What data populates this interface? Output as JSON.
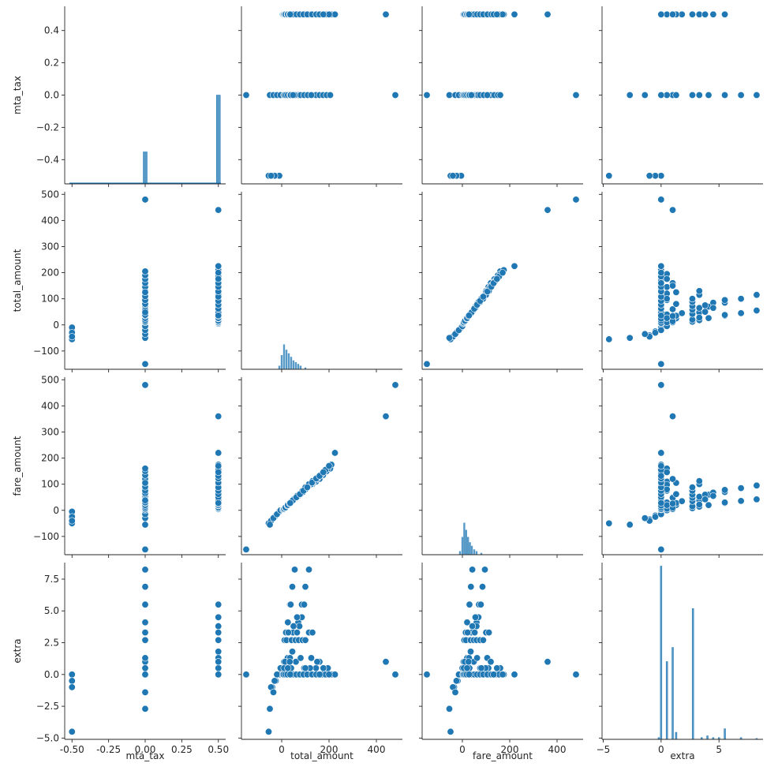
{
  "chart_data": {
    "type": "scatter",
    "variables": [
      "mta_tax",
      "total_amount",
      "fare_amount",
      "extra"
    ],
    "ranges": {
      "mta_tax": [
        -0.55,
        0.55
      ],
      "total_amount": [
        -170,
        510
      ],
      "fare_amount": [
        -170,
        510
      ],
      "extra": [
        -5.1,
        8.8
      ]
    },
    "ticks": {
      "mta_tax": [
        {
          "v": -0.5,
          "label": "-0.50"
        },
        {
          "v": -0.25,
          "label": "-0.25"
        },
        {
          "v": 0,
          "label": "0.00"
        },
        {
          "v": 0.25,
          "label": "0.25"
        },
        {
          "v": 0.5,
          "label": "0.50"
        }
      ],
      "mta_tax_y": [
        {
          "v": 0.4,
          "label": "0.4"
        },
        {
          "v": 0.2,
          "label": "0.2"
        },
        {
          "v": 0,
          "label": "0.0"
        },
        {
          "v": -0.2,
          "label": "−0.2"
        },
        {
          "v": -0.4,
          "label": "−0.4"
        }
      ],
      "total_amount_x": [
        {
          "v": 0,
          "label": "0"
        },
        {
          "v": 200,
          "label": "200"
        },
        {
          "v": 400,
          "label": "400"
        }
      ],
      "total_amount_y": [
        {
          "v": 500,
          "label": "500"
        },
        {
          "v": 400,
          "label": "400"
        },
        {
          "v": 300,
          "label": "300"
        },
        {
          "v": 200,
          "label": "200"
        },
        {
          "v": 100,
          "label": "100"
        },
        {
          "v": 0,
          "label": "0"
        },
        {
          "v": -100,
          "label": "−100"
        }
      ],
      "fare_amount_x": [
        {
          "v": 0,
          "label": "0"
        },
        {
          "v": 200,
          "label": "200"
        },
        {
          "v": 400,
          "label": "400"
        }
      ],
      "fare_amount_y": [
        {
          "v": 500,
          "label": "500"
        },
        {
          "v": 400,
          "label": "400"
        },
        {
          "v": 300,
          "label": "300"
        },
        {
          "v": 200,
          "label": "200"
        },
        {
          "v": 100,
          "label": "100"
        },
        {
          "v": 0,
          "label": "0"
        },
        {
          "v": -100,
          "label": "−100"
        }
      ],
      "extra_x": [
        {
          "v": -5,
          "label": "−5"
        },
        {
          "v": 0,
          "label": "0"
        },
        {
          "v": 5,
          "label": "5"
        }
      ],
      "extra_y": [
        {
          "v": 7.5,
          "label": "7.5"
        },
        {
          "v": 5,
          "label": "5.0"
        },
        {
          "v": 2.5,
          "label": "2.5"
        },
        {
          "v": 0,
          "label": "0.0"
        },
        {
          "v": -2.5,
          "label": "−2.5"
        },
        {
          "v": -5,
          "label": "−5.0"
        }
      ]
    },
    "axis_titles": [
      "mta_tax",
      "total_amount",
      "fare_amount",
      "extra"
    ],
    "color": "#1f77b4",
    "grid": false,
    "records": [
      [
        -0.5,
        -55,
        -50,
        -4.5
      ],
      [
        -0.5,
        -40,
        -35,
        -1.0
      ],
      [
        -0.5,
        -25,
        -20,
        -0.5
      ],
      [
        -0.5,
        -10,
        -5,
        0.0
      ],
      [
        -0.5,
        -30,
        -25,
        -0.5
      ],
      [
        -0.5,
        -45,
        -40,
        -1.0
      ],
      [
        0,
        -150,
        -150,
        0
      ],
      [
        0,
        480,
        480,
        0
      ],
      [
        0,
        -50,
        -55,
        -2.7
      ],
      [
        0,
        -35,
        -30,
        -1.4
      ],
      [
        0,
        -20,
        -15,
        0
      ],
      [
        0,
        -5,
        0,
        0.5
      ],
      [
        0,
        10,
        5,
        1.0
      ],
      [
        0,
        25,
        20,
        1.3
      ],
      [
        0,
        40,
        35,
        2.7
      ],
      [
        0,
        55,
        45,
        3.3
      ],
      [
        0,
        70,
        60,
        4.1
      ],
      [
        0,
        85,
        70,
        5.5
      ],
      [
        0,
        100,
        85,
        6.9
      ],
      [
        0,
        115,
        95,
        8.25
      ],
      [
        0,
        130,
        100,
        0
      ],
      [
        0,
        145,
        110,
        0.5
      ],
      [
        0,
        160,
        120,
        1.0
      ],
      [
        0,
        175,
        135,
        0
      ],
      [
        0,
        190,
        150,
        0
      ],
      [
        0,
        205,
        160,
        0
      ],
      [
        0,
        20,
        15,
        0
      ],
      [
        0,
        30,
        25,
        0.5
      ],
      [
        0,
        50,
        40,
        0
      ],
      [
        0,
        60,
        50,
        1.0
      ],
      [
        0,
        80,
        65,
        0
      ],
      [
        0,
        95,
        75,
        0.5
      ],
      [
        0,
        110,
        90,
        0
      ],
      [
        0,
        125,
        105,
        1.3
      ],
      [
        0,
        12,
        8,
        2.7
      ],
      [
        0,
        18,
        14,
        3.3
      ],
      [
        0,
        26,
        20,
        4.1
      ],
      [
        0,
        35,
        28,
        5.5
      ],
      [
        0,
        45,
        36,
        6.9
      ],
      [
        0,
        55,
        42,
        8.25
      ],
      [
        0,
        38,
        30,
        2.7
      ],
      [
        0,
        48,
        38,
        3.3
      ],
      [
        0.5,
        440,
        360,
        1.0
      ],
      [
        0.5,
        5,
        3,
        0
      ],
      [
        0.5,
        15,
        10,
        0.5
      ],
      [
        0.5,
        25,
        18,
        1.0
      ],
      [
        0.5,
        35,
        28,
        1.3
      ],
      [
        0.5,
        45,
        35,
        1.8
      ],
      [
        0.5,
        55,
        45,
        2.7
      ],
      [
        0.5,
        65,
        52,
        3.3
      ],
      [
        0.5,
        75,
        60,
        3.8
      ],
      [
        0.5,
        85,
        68,
        4.5
      ],
      [
        0.5,
        95,
        78,
        5.5
      ],
      [
        0.5,
        105,
        85,
        0
      ],
      [
        0.5,
        120,
        98,
        0.5
      ],
      [
        0.5,
        135,
        110,
        0
      ],
      [
        0.5,
        150,
        120,
        1.0
      ],
      [
        0.5,
        165,
        135,
        0
      ],
      [
        0.5,
        180,
        150,
        0
      ],
      [
        0.5,
        195,
        160,
        0.5
      ],
      [
        0.5,
        210,
        175,
        0
      ],
      [
        0.5,
        225,
        220,
        0
      ],
      [
        0.5,
        30,
        22,
        0
      ],
      [
        0.5,
        40,
        30,
        0.5
      ],
      [
        0.5,
        50,
        40,
        0
      ],
      [
        0.5,
        60,
        48,
        1.0
      ],
      [
        0.5,
        70,
        55,
        0
      ],
      [
        0.5,
        80,
        62,
        1.3
      ],
      [
        0.5,
        90,
        70,
        0
      ],
      [
        0.5,
        100,
        80,
        0.5
      ],
      [
        0.5,
        110,
        90,
        0
      ],
      [
        0.5,
        125,
        100,
        0
      ],
      [
        0.5,
        140,
        115,
        0
      ],
      [
        0.5,
        155,
        128,
        0
      ],
      [
        0.5,
        170,
        140,
        0
      ],
      [
        0.5,
        185,
        155,
        0
      ],
      [
        0.5,
        200,
        170,
        0
      ],
      [
        0.5,
        20,
        15,
        2.7
      ],
      [
        0.5,
        42,
        35,
        2.7
      ],
      [
        0.5,
        58,
        48,
        2.7
      ],
      [
        0.5,
        72,
        60,
        2.7
      ],
      [
        0.5,
        88,
        75,
        2.7
      ],
      [
        0.5,
        100,
        88,
        2.7
      ],
      [
        0.5,
        115,
        100,
        3.3
      ],
      [
        0.5,
        130,
        112,
        3.3
      ],
      [
        0.5,
        28,
        22,
        3.3
      ],
      [
        0.5,
        50,
        42,
        3.8
      ],
      [
        0.5,
        65,
        55,
        4.5
      ],
      [
        0.5,
        38,
        30,
        5.5
      ],
      [
        0.5,
        22,
        17,
        0
      ],
      [
        0.5,
        32,
        25,
        0
      ],
      [
        0.5,
        47,
        38,
        0
      ],
      [
        0.5,
        62,
        50,
        0
      ],
      [
        0.5,
        77,
        62,
        0
      ],
      [
        0.5,
        92,
        75,
        0
      ],
      [
        0.5,
        108,
        88,
        0
      ],
      [
        0.5,
        128,
        106,
        0
      ],
      [
        0.5,
        146,
        122,
        0
      ],
      [
        0.5,
        160,
        132,
        0
      ],
      [
        0.5,
        176,
        146,
        0.5
      ],
      [
        0.5,
        12,
        8,
        0.5
      ],
      [
        0.5,
        18,
        12,
        1.0
      ],
      [
        0.5,
        8,
        5,
        0
      ],
      [
        0.5,
        10,
        6,
        0.5
      ],
      [
        0.5,
        14,
        10,
        1.0
      ],
      [
        0.5,
        16,
        11,
        0
      ],
      [
        0.5,
        24,
        18,
        0
      ],
      [
        0.5,
        26,
        20,
        0.5
      ],
      [
        0.5,
        34,
        26,
        1.0
      ],
      [
        0.5,
        36,
        28,
        0
      ]
    ],
    "hist_diag": {
      "mta_tax": {
        "bins": [
          [
            -0.5,
            0.005
          ],
          [
            0.0,
            0.18
          ],
          [
            0.5,
            0.5
          ]
        ]
      },
      "total_amount": {
        "profile": [
          [
            -10,
            0.02
          ],
          [
            0,
            0.08
          ],
          [
            10,
            0.14
          ],
          [
            20,
            0.11
          ],
          [
            30,
            0.09
          ],
          [
            40,
            0.07
          ],
          [
            50,
            0.05
          ],
          [
            60,
            0.04
          ],
          [
            70,
            0.03
          ],
          [
            80,
            0.02
          ],
          [
            100,
            0.01
          ]
        ]
      },
      "fare_amount": {
        "profile": [
          [
            -10,
            0.02
          ],
          [
            0,
            0.1
          ],
          [
            8,
            0.18
          ],
          [
            16,
            0.14
          ],
          [
            24,
            0.1
          ],
          [
            32,
            0.07
          ],
          [
            40,
            0.05
          ],
          [
            50,
            0.03
          ],
          [
            60,
            0.02
          ],
          [
            80,
            0.01
          ]
        ]
      },
      "extra": {
        "bins": [
          [
            -0.2,
            0.01
          ],
          [
            0,
            0.98
          ],
          [
            0.5,
            0.44
          ],
          [
            1.0,
            0.52
          ],
          [
            1.3,
            0.04
          ],
          [
            2.75,
            0.74
          ],
          [
            3.5,
            0.01
          ],
          [
            4.0,
            0.02
          ],
          [
            4.5,
            0.01
          ],
          [
            5.0,
            0.01
          ],
          [
            5.5,
            0.06
          ],
          [
            6.9,
            0.01
          ],
          [
            8.25,
            0.005
          ]
        ]
      }
    }
  }
}
